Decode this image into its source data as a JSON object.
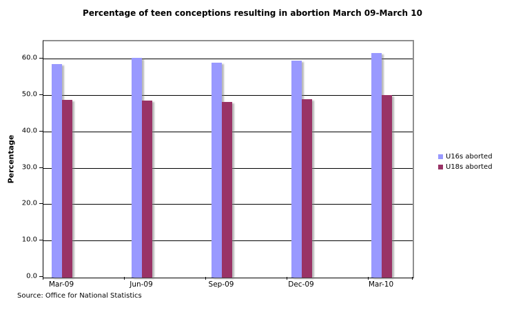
{
  "chart_data": {
    "type": "bar",
    "title": "Percentage of teen conceptions resulting in abortion March 09-March 10",
    "categories": [
      "Mar-09",
      "Jun-09",
      "Sep-09",
      "Dec-09",
      "Mar-10"
    ],
    "series": [
      {
        "name": "U16s aborted",
        "color": "#9999FF",
        "values": [
          58.8,
          60.5,
          59.2,
          59.7,
          61.7
        ]
      },
      {
        "name": "U18s aborted",
        "color": "#993366",
        "values": [
          48.9,
          48.7,
          48.4,
          49.0,
          50.2
        ]
      }
    ],
    "xlabel": "",
    "ylabel": "Percentage",
    "ylim": [
      0,
      65
    ],
    "yticks": [
      0,
      10,
      20,
      30,
      40,
      50,
      60
    ],
    "ytick_labels": [
      "0.0",
      "10.0",
      "20.0",
      "30.0",
      "40.0",
      "50.0",
      "60.0"
    ],
    "grid": true,
    "legend_position": "right"
  },
  "source_note": "Source: Office for National Statistics",
  "colors": {
    "u16_bar": "#9999FF",
    "u18_bar": "#993366",
    "gridline": "#000000",
    "plot_border": "#8e8e8e",
    "background": "#FFFFFF"
  }
}
